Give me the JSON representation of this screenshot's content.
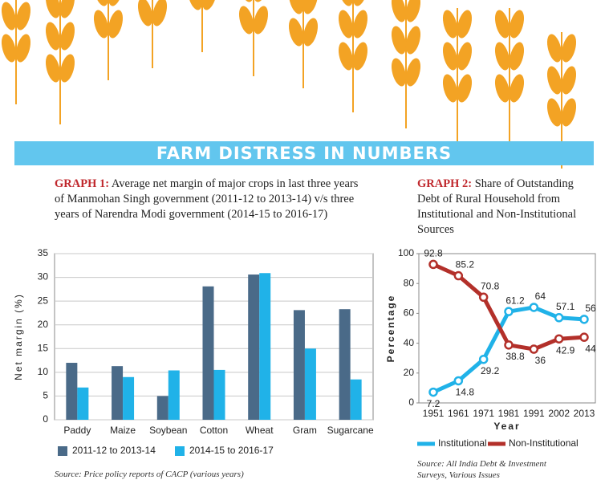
{
  "banner": {
    "title": "FARM DISTRESS IN NUMBERS"
  },
  "chart_data": [
    {
      "type": "bar",
      "label": "GRAPH 1:",
      "title": "Average net margin of major crops in last three years of Manmohan Singh government (2011-12 to 2013-14) v/s three years of Narendra Modi government (2014-15 to 2016-17)",
      "categories": [
        "Paddy",
        "Maize",
        "Soybean",
        "Cotton",
        "Wheat",
        "Gram",
        "Sugarcane"
      ],
      "series": [
        {
          "name": "2011-12 to 2013-14",
          "color": "#4a6a88",
          "values": [
            12,
            11.3,
            5,
            28.1,
            30.6,
            23.1,
            23.3
          ]
        },
        {
          "name": "2014-15 to 2016-17",
          "color": "#20b2e8",
          "values": [
            6.8,
            9,
            10.4,
            10.5,
            30.9,
            15,
            8.5
          ]
        }
      ],
      "ylabel": "Net margin (%)",
      "ylim": [
        0,
        35
      ],
      "yticks": [
        0,
        5,
        10,
        15,
        20,
        25,
        30,
        35
      ],
      "grid": true,
      "source": "Source: Price policy reports of CACP (various years)"
    },
    {
      "type": "line",
      "label": "GRAPH 2:",
      "title": "Share of Outstanding Debt of Rural Household from Institutional and Non-Institutional Sources",
      "categories": [
        "1951",
        "1961",
        "1971",
        "1981",
        "1991",
        "2002",
        "2013"
      ],
      "series": [
        {
          "name": "Institutional",
          "color": "#20b2e8",
          "values": [
            7.2,
            14.8,
            29.2,
            61.2,
            64,
            57.1,
            56
          ]
        },
        {
          "name": "Non-Institutional",
          "color": "#b3302a",
          "values": [
            92.8,
            85.2,
            70.8,
            38.8,
            36,
            42.9,
            44
          ]
        }
      ],
      "xlabel": "Year",
      "ylabel": "Percentage",
      "ylim": [
        0,
        100
      ],
      "yticks": [
        0,
        20,
        40,
        60,
        80,
        100
      ],
      "grid": false,
      "source": "Source: All India Debt & Investment Surveys, Various Issues"
    }
  ]
}
